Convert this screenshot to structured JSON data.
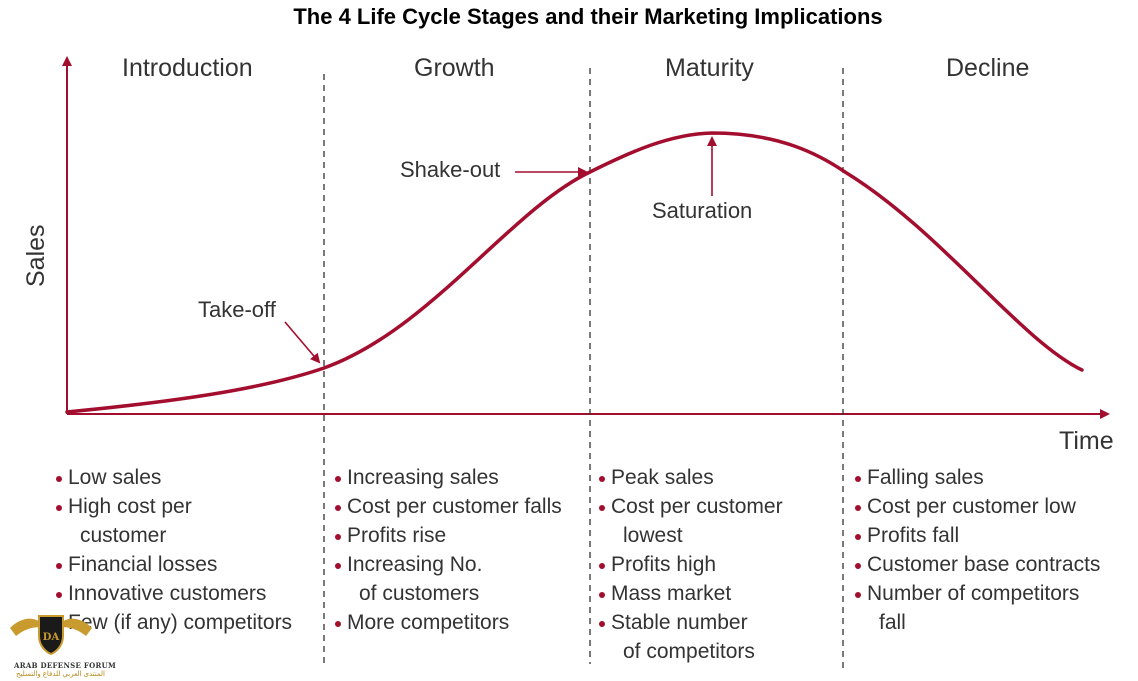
{
  "title": "The 4 Life Cycle Stages and their Marketing Implications",
  "colors": {
    "curve": "#a30e2f",
    "text": "#333333"
  },
  "axes": {
    "y": "Sales",
    "x": "Time"
  },
  "stages": [
    "Introduction",
    "Growth",
    "Maturity",
    "Decline"
  ],
  "annotations": {
    "takeoff": "Take-off",
    "shakeout": "Shake-out",
    "saturation": "Saturation"
  },
  "columns": [
    [
      {
        "lines": [
          "Low sales"
        ]
      },
      {
        "lines": [
          "High cost per",
          "customer"
        ]
      },
      {
        "lines": [
          "Financial losses"
        ]
      },
      {
        "lines": [
          "Innovative customers"
        ]
      },
      {
        "lines": [
          "Few (if any) competitors"
        ]
      }
    ],
    [
      {
        "lines": [
          "Increasing sales"
        ]
      },
      {
        "lines": [
          "Cost per customer falls"
        ]
      },
      {
        "lines": [
          "Profits rise"
        ]
      },
      {
        "lines": [
          "Increasing No.",
          "of customers"
        ]
      },
      {
        "lines": [
          "More competitors"
        ]
      }
    ],
    [
      {
        "lines": [
          "Peak sales"
        ]
      },
      {
        "lines": [
          "Cost per customer",
          "lowest"
        ]
      },
      {
        "lines": [
          "Profits high"
        ]
      },
      {
        "lines": [
          "Mass market"
        ]
      },
      {
        "lines": [
          "Stable number",
          "of competitors"
        ]
      }
    ],
    [
      {
        "lines": [
          "Falling sales"
        ]
      },
      {
        "lines": [
          "Cost per customer low"
        ]
      },
      {
        "lines": [
          "Profits fall"
        ]
      },
      {
        "lines": [
          "Customer base contracts"
        ]
      },
      {
        "lines": [
          "Number of competitors",
          "fall"
        ]
      }
    ]
  ],
  "watermark": {
    "icon": "eagle-shield-logo",
    "initials": "DA",
    "name": "ARAB DEFENSE FORUM",
    "arabic": "المنتدى العربي للدفاع والتسليح"
  }
}
